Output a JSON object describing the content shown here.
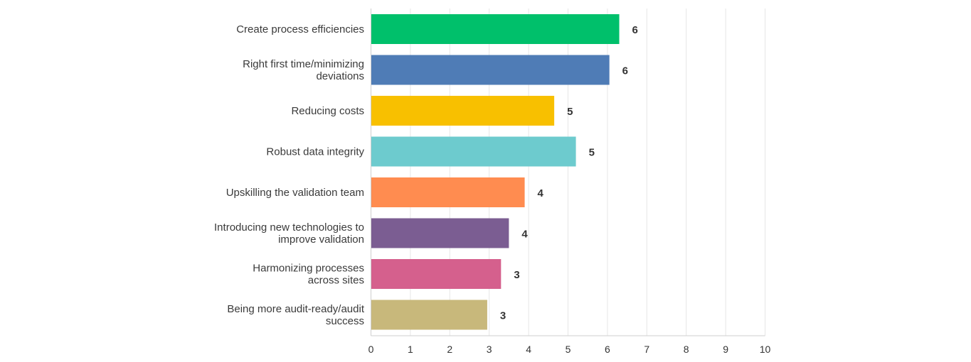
{
  "chart_data": {
    "type": "bar",
    "orientation": "horizontal",
    "title": "",
    "xlabel": "",
    "ylabel": "",
    "xlim": [
      0,
      10
    ],
    "x_ticks": [
      "0",
      "1",
      "2",
      "3",
      "4",
      "5",
      "6",
      "7",
      "8",
      "9",
      "10"
    ],
    "grid": true,
    "legend": "none",
    "categories": [
      "Create process efficiencies",
      "Right first time/minimizing deviations",
      "Reducing costs",
      "Robust data integrity",
      "Upskilling the validation team",
      "Introducing new technologies to improve validation",
      "Harmonizing processes across sites",
      "Being more audit-ready/audit success"
    ],
    "category_lines": [
      [
        "Create process efficiencies"
      ],
      [
        "Right first time/minimizing",
        "deviations"
      ],
      [
        "Reducing costs"
      ],
      [
        "Robust data integrity"
      ],
      [
        "Upskilling the validation team"
      ],
      [
        "Introducing new technologies to",
        "improve validation"
      ],
      [
        "Harmonizing processes",
        "across sites"
      ],
      [
        "Being more audit-ready/audit",
        "success"
      ]
    ],
    "values": [
      6.3,
      6.05,
      4.65,
      5.2,
      3.9,
      3.5,
      3.3,
      2.95
    ],
    "data_labels": [
      "6",
      "6",
      "5",
      "5",
      "4",
      "4",
      "3",
      "3"
    ],
    "colors": [
      "#00c06b",
      "#4f7cb6",
      "#f8c000",
      "#6dcbce",
      "#ff8c50",
      "#7b5d92",
      "#d5608d",
      "#c8b87b"
    ]
  }
}
